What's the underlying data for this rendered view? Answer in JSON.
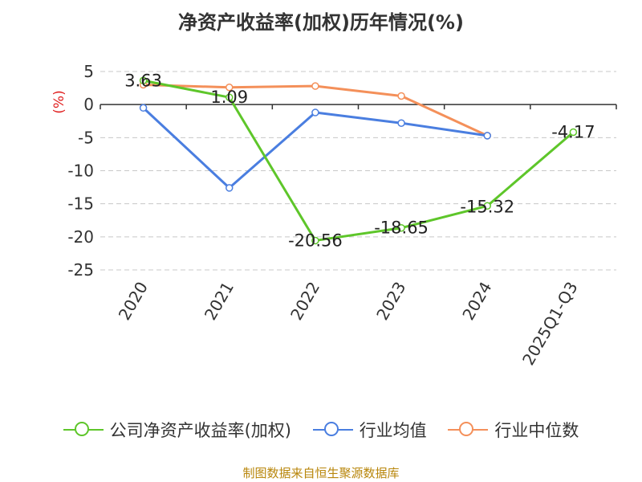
{
  "chart_data": {
    "type": "line",
    "title": "净资产收益率(加权)历年情况(%)",
    "ylabel": "(%)",
    "xlabel": "",
    "categories": [
      "2020",
      "2021",
      "2022",
      "2023",
      "2024",
      "2025Q1-Q3"
    ],
    "ylim": [
      -25,
      5
    ],
    "yticks": [
      5,
      0,
      -5,
      -10,
      -15,
      -20,
      -25
    ],
    "grid": true,
    "legend": "bottom",
    "series": [
      {
        "name": "公司净资产收益率(加权)",
        "color": "#5ec62a",
        "values": [
          3.63,
          1.09,
          -20.56,
          -18.65,
          -15.32,
          -4.17
        ],
        "labels": [
          "3.63",
          "1.09",
          "-20.56",
          "-18.65",
          "-15.32",
          "-4.17"
        ]
      },
      {
        "name": "行业均值",
        "color": "#4a7ee0",
        "values": [
          -0.5,
          -12.6,
          -1.2,
          -2.8,
          -4.7,
          null
        ]
      },
      {
        "name": "行业中位数",
        "color": "#f4905a",
        "values": [
          3.0,
          2.6,
          2.8,
          1.3,
          -4.7,
          null
        ]
      }
    ]
  },
  "source": "制图数据来自恒生聚源数据库"
}
